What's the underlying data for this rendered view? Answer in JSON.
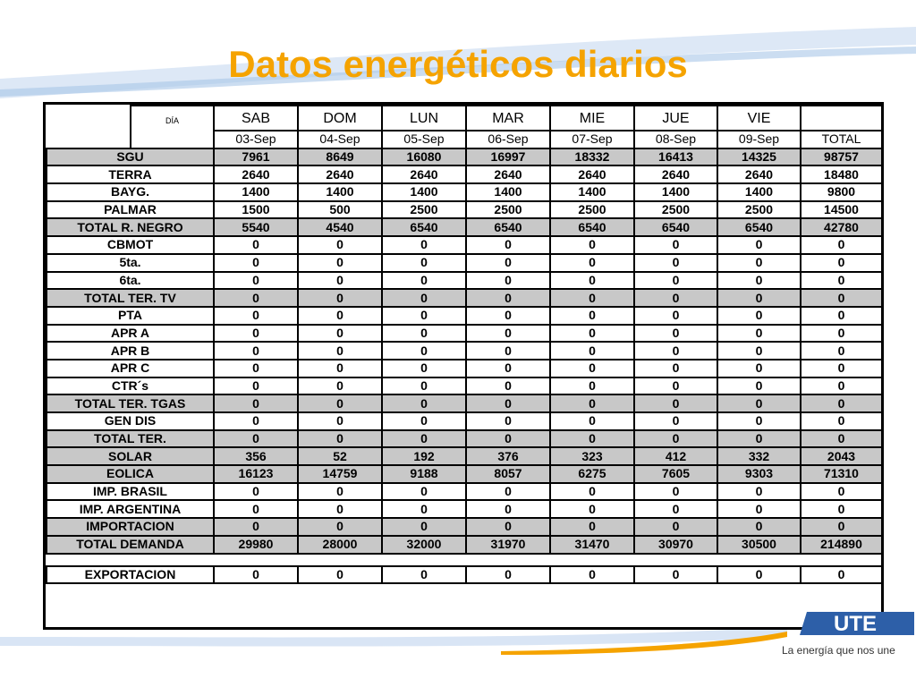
{
  "title": "Datos energéticos diarios",
  "header": {
    "dia_label": "DÍA",
    "days": [
      "SAB",
      "DOM",
      "LUN",
      "MAR",
      "MIE",
      "JUE",
      "VIE"
    ],
    "dates": [
      "03-Sep",
      "04-Sep",
      "05-Sep",
      "06-Sep",
      "07-Sep",
      "08-Sep",
      "09-Sep"
    ],
    "total_label": "TOTAL"
  },
  "rows": [
    {
      "label": "SGU",
      "values": [
        "7961",
        "8649",
        "16080",
        "16997",
        "18332",
        "16413",
        "14325"
      ],
      "total": "98757"
    },
    {
      "label": "TERRA",
      "values": [
        "2640",
        "2640",
        "2640",
        "2640",
        "2640",
        "2640",
        "2640"
      ],
      "total": "18480"
    },
    {
      "label": "BAYG.",
      "values": [
        "1400",
        "1400",
        "1400",
        "1400",
        "1400",
        "1400",
        "1400"
      ],
      "total": "9800"
    },
    {
      "label": "PALMAR",
      "values": [
        "1500",
        "500",
        "2500",
        "2500",
        "2500",
        "2500",
        "2500"
      ],
      "total": "14500"
    },
    {
      "label": "TOTAL R. NEGRO",
      "values": [
        "5540",
        "4540",
        "6540",
        "6540",
        "6540",
        "6540",
        "6540"
      ],
      "total": "42780"
    },
    {
      "label": "CBMOT",
      "values": [
        "0",
        "0",
        "0",
        "0",
        "0",
        "0",
        "0"
      ],
      "total": "0"
    },
    {
      "label": "5ta.",
      "values": [
        "0",
        "0",
        "0",
        "0",
        "0",
        "0",
        "0"
      ],
      "total": "0"
    },
    {
      "label": "6ta.",
      "values": [
        "0",
        "0",
        "0",
        "0",
        "0",
        "0",
        "0"
      ],
      "total": "0"
    },
    {
      "label": "TOTAL TER. TV",
      "values": [
        "0",
        "0",
        "0",
        "0",
        "0",
        "0",
        "0"
      ],
      "total": "0"
    },
    {
      "label": "PTA",
      "values": [
        "0",
        "0",
        "0",
        "0",
        "0",
        "0",
        "0"
      ],
      "total": "0"
    },
    {
      "label": "APR A",
      "values": [
        "0",
        "0",
        "0",
        "0",
        "0",
        "0",
        "0"
      ],
      "total": "0"
    },
    {
      "label": "APR B",
      "values": [
        "0",
        "0",
        "0",
        "0",
        "0",
        "0",
        "0"
      ],
      "total": "0"
    },
    {
      "label": "APR C",
      "values": [
        "0",
        "0",
        "0",
        "0",
        "0",
        "0",
        "0"
      ],
      "total": "0"
    },
    {
      "label": "CTR´s",
      "values": [
        "0",
        "0",
        "0",
        "0",
        "0",
        "0",
        "0"
      ],
      "total": "0"
    },
    {
      "label": "TOTAL TER. TGAS",
      "values": [
        "0",
        "0",
        "0",
        "0",
        "0",
        "0",
        "0"
      ],
      "total": "0"
    },
    {
      "label": "GEN DIS",
      "values": [
        "0",
        "0",
        "0",
        "0",
        "0",
        "0",
        "0"
      ],
      "total": "0"
    },
    {
      "label": "TOTAL TER.",
      "values": [
        "0",
        "0",
        "0",
        "0",
        "0",
        "0",
        "0"
      ],
      "total": "0"
    },
    {
      "label": "SOLAR",
      "values": [
        "356",
        "52",
        "192",
        "376",
        "323",
        "412",
        "332"
      ],
      "total": "2043"
    },
    {
      "label": "EOLICA",
      "values": [
        "16123",
        "14759",
        "9188",
        "8057",
        "6275",
        "7605",
        "9303"
      ],
      "total": "71310"
    },
    {
      "label": "IMP. BRASIL",
      "values": [
        "0",
        "0",
        "0",
        "0",
        "0",
        "0",
        "0"
      ],
      "total": "0"
    },
    {
      "label": "IMP. ARGENTINA",
      "values": [
        "0",
        "0",
        "0",
        "0",
        "0",
        "0",
        "0"
      ],
      "total": "0"
    },
    {
      "label": "IMPORTACION",
      "values": [
        "0",
        "0",
        "0",
        "0",
        "0",
        "0",
        "0"
      ],
      "total": "0"
    },
    {
      "label": "TOTAL DEMANDA",
      "values": [
        "29980",
        "28000",
        "32000",
        "31970",
        "31470",
        "30970",
        "30500"
      ],
      "total": "214890"
    }
  ],
  "exportacion": {
    "label": "EXPORTACION",
    "values": [
      "0",
      "0",
      "0",
      "0",
      "0",
      "0",
      "0"
    ],
    "total": "0"
  },
  "footer": {
    "tagline": "La energía que nos une"
  },
  "colors": {
    "title": "#f5a300",
    "grey_row": "#c8c8c8",
    "swoosh_blue": "#a9c6e8",
    "swoosh_orange": "#f5a300"
  }
}
